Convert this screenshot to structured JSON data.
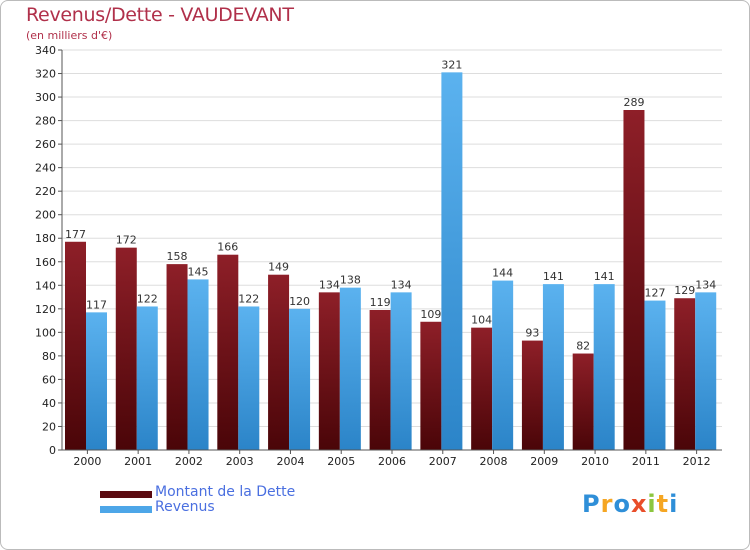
{
  "title": "Revenus/Dette - VAUDEVANT",
  "subtitle": "(en milliers d'€)",
  "colors": {
    "dette": "#7a1018",
    "revenus": "#4da6e8",
    "title": "#b0304a",
    "legend_text": "#4a6fe0"
  },
  "logo": {
    "letters": [
      {
        "ch": "P",
        "color": "#2f8fd8"
      },
      {
        "ch": "r",
        "color": "#f5a623"
      },
      {
        "ch": "o",
        "color": "#2f8fd8"
      },
      {
        "ch": "x",
        "color": "#e94e2a"
      },
      {
        "ch": "i",
        "color": "#8cc63f"
      },
      {
        "ch": "t",
        "color": "#f5a623"
      },
      {
        "ch": "i",
        "color": "#2f8fd8"
      }
    ]
  },
  "chart_data": {
    "type": "bar",
    "title": "Revenus/Dette - VAUDEVANT",
    "subtitle": "(en milliers d'€)",
    "categories": [
      "2000",
      "2001",
      "2002",
      "2003",
      "2004",
      "2005",
      "2006",
      "2007",
      "2008",
      "2009",
      "2010",
      "2011",
      "2012"
    ],
    "series": [
      {
        "name": "Montant de la Dette",
        "color": "#7a1018",
        "values": [
          177,
          172,
          158,
          166,
          149,
          134,
          119,
          109,
          104,
          93,
          82,
          289,
          129
        ]
      },
      {
        "name": "Revenus",
        "color": "#4da6e8",
        "values": [
          117,
          122,
          145,
          122,
          120,
          138,
          134,
          321,
          144,
          141,
          141,
          127,
          134
        ]
      }
    ],
    "ylim": [
      0,
      340
    ],
    "yticks": [
      0,
      20,
      40,
      60,
      80,
      100,
      120,
      140,
      160,
      180,
      200,
      220,
      240,
      260,
      280,
      300,
      320,
      340
    ],
    "grid": true,
    "legend_position": "bottom-left",
    "xlabel": "",
    "ylabel": ""
  }
}
